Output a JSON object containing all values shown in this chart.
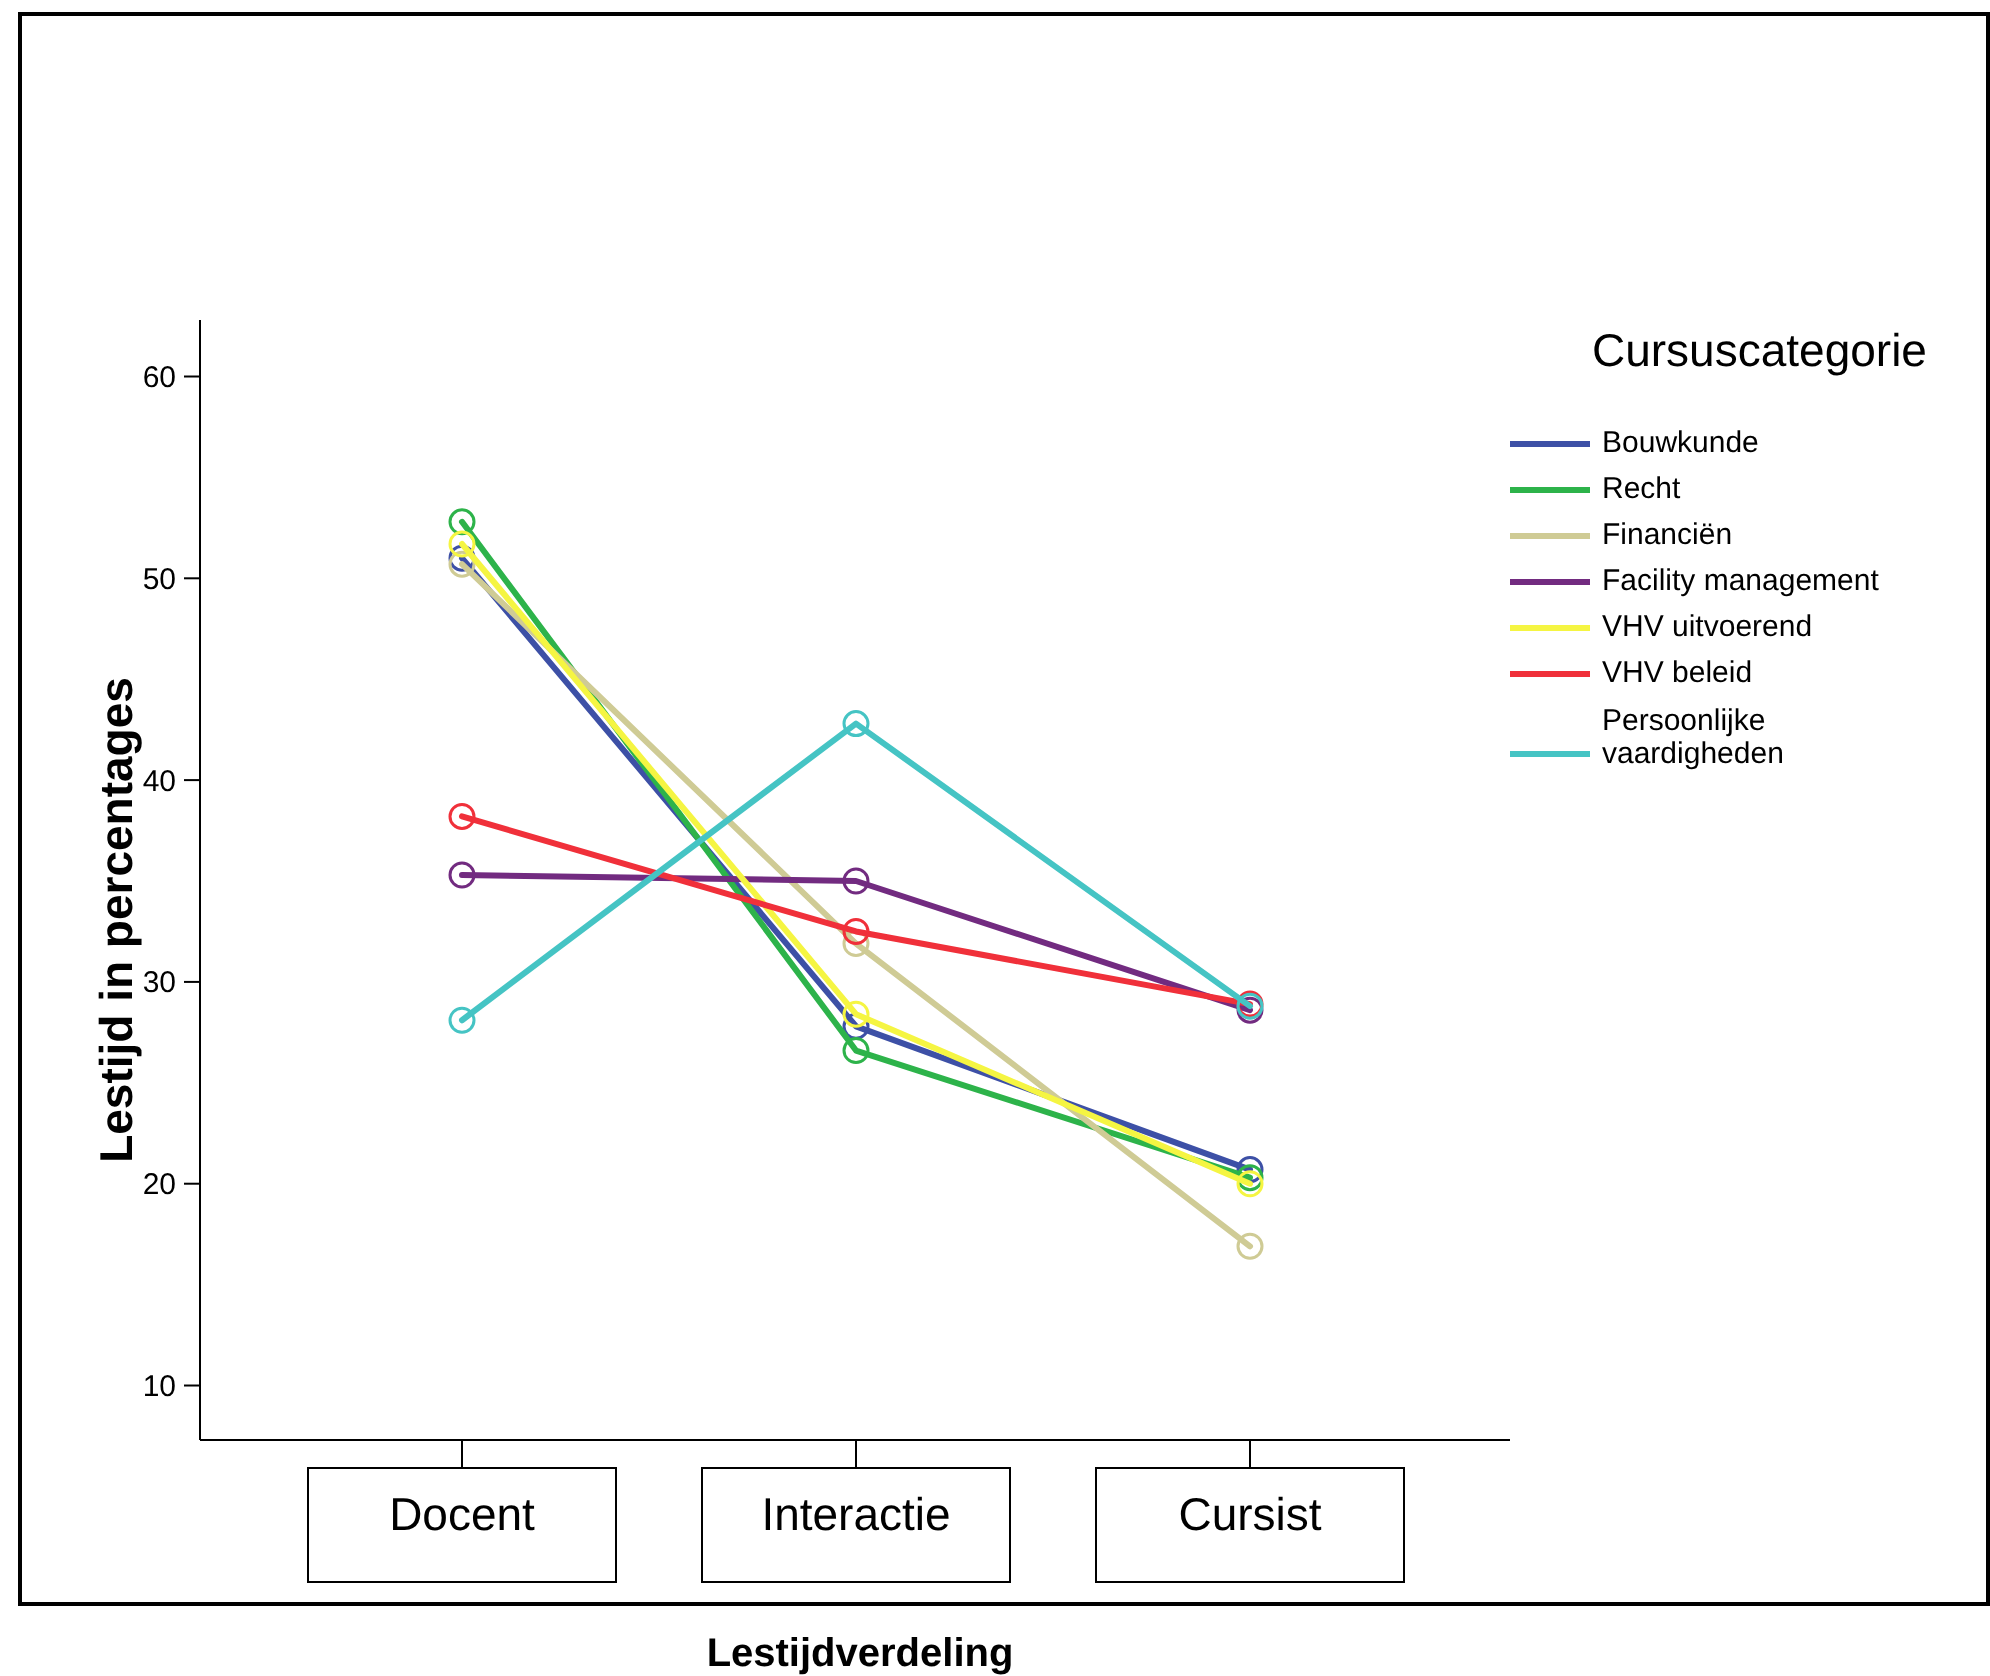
{
  "chart_data": {
    "type": "line",
    "xlabel": "Lestijdverdeling",
    "ylabel": "Lestijd in percentages",
    "legend_title": "Cursuscategorie",
    "legend": "right",
    "marker": "circle",
    "grid": false,
    "categories": [
      "Docent",
      "Interactie",
      "Cursist"
    ],
    "ylim": [
      7.3,
      62.8
    ],
    "yticks": [
      10,
      20,
      30,
      40,
      50,
      60
    ],
    "series": [
      {
        "name": "Bouwkunde",
        "color": "#3d50a6",
        "values": [
          51.0,
          27.8,
          20.7
        ]
      },
      {
        "name": "Recht",
        "color": "#2db34a",
        "values": [
          52.8,
          26.6,
          20.3
        ]
      },
      {
        "name": "Financiën",
        "color": "#cfcb95",
        "values": [
          50.7,
          31.9,
          16.9
        ]
      },
      {
        "name": "Facility management",
        "color": "#722b80",
        "values": [
          35.3,
          35.0,
          28.6
        ]
      },
      {
        "name": "VHV uitvoerend",
        "color": "#f5f542",
        "values": [
          51.7,
          28.4,
          20.0
        ]
      },
      {
        "name": "VHV beleid",
        "color": "#f0303a",
        "values": [
          38.2,
          32.5,
          28.9
        ]
      },
      {
        "name": "Persoonlijke vaardigheden",
        "color": "#45c4c4",
        "values": [
          28.1,
          42.8,
          28.8
        ]
      }
    ]
  }
}
